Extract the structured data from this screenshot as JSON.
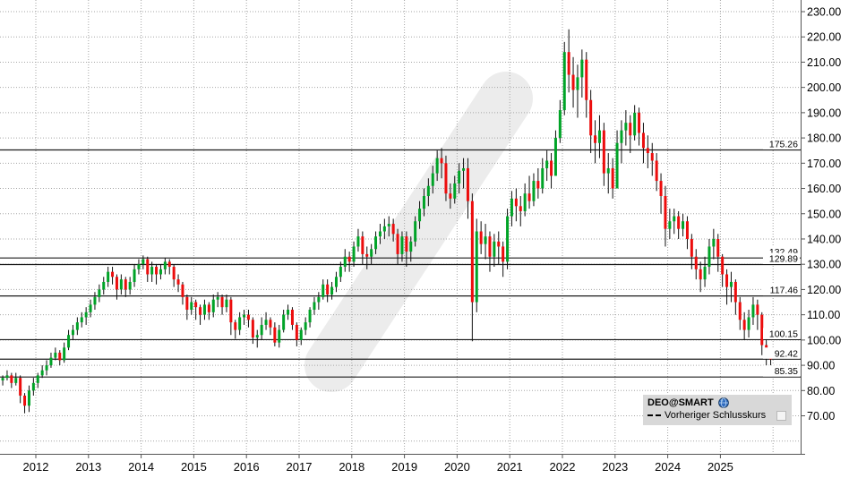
{
  "legend": {
    "title": "DEO@SMART",
    "icon": "globe-icon",
    "series": [
      {
        "label": "Vorheriger Schlusskurs",
        "marker": "dashed-line"
      }
    ]
  },
  "colors": {
    "up": "#00a327",
    "down": "#ec0d0d",
    "wick": "#101010",
    "grid": "#a6a6a6",
    "axis_border": "#555555",
    "level_line": "#1b1b1b",
    "level_label_bg": "#ffffff",
    "watermark": "#ececec",
    "legend_bg": "#d8d8d8",
    "text": "#000000"
  },
  "chart_data": {
    "type": "candlestick",
    "title": "DEO@SMART",
    "x_axis": {
      "years": [
        "2012",
        "2013",
        "2014",
        "2015",
        "2016",
        "2017",
        "2018",
        "2019",
        "2020",
        "2021",
        "2022",
        "2023",
        "2024",
        "2025"
      ],
      "start": 2011.33,
      "end": 2025.92,
      "grid": true
    },
    "y_axis": {
      "min": 70,
      "max": 230,
      "step": 10,
      "tick_labels": [
        "230.00",
        "220.00",
        "210.00",
        "200.00",
        "190.00",
        "180.00",
        "170.00",
        "160.00",
        "150.00",
        "140.00",
        "130.00",
        "120.00",
        "110.00",
        "100.00",
        "90.00",
        "80.00",
        "70.00"
      ],
      "grid": true
    },
    "level_lines": [
      175.26,
      132.49,
      129.89,
      117.46,
      100.15,
      92.42,
      85.35
    ],
    "prev_close": 92.42,
    "ohlc": {
      "note": "monthly high/low/close read from chart; open = previous close",
      "start_month": "2011-04",
      "first_open": 84,
      "rows_hlc": [
        [
          86,
          82,
          85
        ],
        [
          88,
          84,
          86
        ],
        [
          87,
          81,
          83
        ],
        [
          87,
          82,
          85
        ],
        [
          86,
          75,
          78
        ],
        [
          79,
          71,
          74
        ],
        [
          82,
          71.5,
          80
        ],
        [
          85,
          78,
          83
        ],
        [
          87,
          81,
          86
        ],
        [
          90,
          85,
          88
        ],
        [
          92,
          86,
          90
        ],
        [
          95,
          89,
          93
        ],
        [
          97,
          92,
          95
        ],
        [
          96,
          90,
          92
        ],
        [
          99,
          91,
          97
        ],
        [
          104,
          96,
          102
        ],
        [
          106,
          100,
          104
        ],
        [
          109,
          102,
          107
        ],
        [
          111,
          105,
          109
        ],
        [
          113,
          106,
          111
        ],
        [
          116,
          109,
          114
        ],
        [
          119,
          112,
          117
        ],
        [
          122,
          115,
          120
        ],
        [
          125,
          118,
          123
        ],
        [
          129,
          121,
          127
        ],
        [
          129,
          122,
          125
        ],
        [
          126,
          116,
          120
        ],
        [
          126,
          118,
          124
        ],
        [
          125,
          117,
          120
        ],
        [
          125,
          118,
          123
        ],
        [
          130,
          121,
          128
        ],
        [
          132,
          126,
          130
        ],
        [
          133.5,
          128,
          132
        ],
        [
          133,
          123,
          126
        ],
        [
          131,
          123,
          129
        ],
        [
          130,
          122,
          126
        ],
        [
          130,
          124,
          128
        ],
        [
          132.5,
          126,
          131
        ],
        [
          132,
          126,
          129
        ],
        [
          130,
          121,
          124
        ],
        [
          126,
          119,
          122
        ],
        [
          123,
          114,
          117
        ],
        [
          118,
          108,
          112
        ],
        [
          117,
          110,
          115
        ],
        [
          116,
          108,
          113
        ],
        [
          114,
          106,
          110
        ],
        [
          116,
          108,
          114
        ],
        [
          115,
          108,
          111
        ],
        [
          118,
          109,
          116
        ],
        [
          119,
          113,
          117
        ],
        [
          118,
          110,
          113
        ],
        [
          118,
          111,
          116
        ],
        [
          117,
          102,
          107
        ],
        [
          108,
          100.5,
          104
        ],
        [
          111,
          102,
          109
        ],
        [
          112,
          106,
          110
        ],
        [
          112,
          105,
          108
        ],
        [
          109,
          98.5,
          101
        ],
        [
          104,
          97,
          102
        ],
        [
          109,
          100,
          106
        ],
        [
          111,
          104,
          108
        ],
        [
          109,
          102,
          105
        ],
        [
          107,
          97.5,
          99
        ],
        [
          106,
          97,
          104
        ],
        [
          112,
          103,
          110
        ],
        [
          114,
          108,
          112
        ],
        [
          113,
          104,
          106
        ],
        [
          107,
          97.5,
          100
        ],
        [
          105,
          98,
          104
        ],
        [
          109,
          102,
          107
        ],
        [
          113,
          105,
          112
        ],
        [
          117,
          110,
          115
        ],
        [
          119,
          112,
          117
        ],
        [
          124,
          116,
          122
        ],
        [
          124,
          115,
          118
        ],
        [
          123,
          116,
          121
        ],
        [
          127,
          119,
          125
        ],
        [
          131,
          123,
          129
        ],
        [
          136,
          127,
          133
        ],
        [
          135,
          127,
          131
        ],
        [
          139,
          129,
          137
        ],
        [
          144,
          135,
          141
        ],
        [
          143,
          130,
          134
        ],
        [
          137,
          128,
          133
        ],
        [
          138,
          130,
          136
        ],
        [
          143,
          134,
          141
        ],
        [
          146,
          138,
          143
        ],
        [
          148,
          140,
          145
        ],
        [
          149,
          141,
          146
        ],
        [
          148,
          139,
          142
        ],
        [
          144,
          130,
          134
        ],
        [
          143,
          131,
          141
        ],
        [
          143,
          129,
          135
        ],
        [
          141,
          131,
          139
        ],
        [
          149,
          137,
          147
        ],
        [
          155,
          144,
          152
        ],
        [
          160,
          149,
          157
        ],
        [
          164,
          153,
          161
        ],
        [
          169,
          158,
          166
        ],
        [
          175,
          163,
          172
        ],
        [
          176,
          164,
          170
        ],
        [
          173,
          155,
          158
        ],
        [
          162,
          152,
          156
        ],
        [
          165,
          154,
          162
        ],
        [
          170,
          158,
          167
        ],
        [
          172,
          160,
          168
        ],
        [
          172,
          148,
          155
        ],
        [
          158,
          99.5,
          115
        ],
        [
          148,
          111,
          143
        ],
        [
          147,
          134,
          138
        ],
        [
          146,
          132,
          141
        ],
        [
          143,
          127,
          133
        ],
        [
          142,
          129,
          139
        ],
        [
          143,
          130,
          137
        ],
        [
          139,
          125,
          131
        ],
        [
          152,
          128,
          149
        ],
        [
          159,
          145,
          156
        ],
        [
          160,
          147,
          153
        ],
        [
          157,
          145,
          151
        ],
        [
          162,
          149,
          158
        ],
        [
          165,
          152,
          155
        ],
        [
          166,
          153,
          163
        ],
        [
          168,
          156,
          160
        ],
        [
          172,
          158,
          168
        ],
        [
          175,
          163,
          171
        ],
        [
          174,
          160,
          165
        ],
        [
          183,
          166,
          180
        ],
        [
          195,
          178,
          191
        ],
        [
          218,
          189,
          214
        ],
        [
          223,
          198,
          205
        ],
        [
          212,
          192,
          199
        ],
        [
          209,
          188,
          204
        ],
        [
          215,
          196,
          211
        ],
        [
          214,
          188,
          195
        ],
        [
          199,
          174,
          181
        ],
        [
          187,
          170,
          178
        ],
        [
          189,
          172,
          183
        ],
        [
          186,
          161,
          166
        ],
        [
          174,
          158,
          168
        ],
        [
          172,
          156,
          160
        ],
        [
          183,
          162,
          178
        ],
        [
          187,
          170,
          183
        ],
        [
          191,
          177,
          186
        ],
        [
          189,
          174,
          181
        ],
        [
          193,
          179,
          190
        ],
        [
          192,
          177,
          182
        ],
        [
          186,
          170,
          176
        ],
        [
          181,
          168,
          174
        ],
        [
          178,
          165,
          171
        ],
        [
          174,
          159,
          163
        ],
        [
          166,
          150,
          157
        ],
        [
          161,
          137,
          144
        ],
        [
          152,
          140,
          147
        ],
        [
          152,
          142,
          149
        ],
        [
          151,
          140,
          144
        ],
        [
          150,
          141,
          147
        ],
        [
          149,
          136,
          140
        ],
        [
          142,
          128,
          133
        ],
        [
          136,
          124,
          128
        ],
        [
          131,
          119,
          124
        ],
        [
          133,
          121,
          129
        ],
        [
          140,
          126,
          137
        ],
        [
          144,
          132,
          140
        ],
        [
          142,
          127,
          133
        ],
        [
          134,
          121,
          126
        ],
        [
          128,
          114,
          121
        ],
        [
          127,
          115,
          123
        ],
        [
          124,
          110,
          115
        ],
        [
          117,
          104,
          108
        ],
        [
          111,
          100,
          104
        ],
        [
          112,
          101,
          109
        ],
        [
          117,
          106,
          114
        ],
        [
          116,
          104,
          110
        ],
        [
          111,
          94,
          98
        ],
        [
          101,
          89.5,
          93.5
        ],
        [
          95,
          90,
          92.4
        ]
      ]
    }
  }
}
